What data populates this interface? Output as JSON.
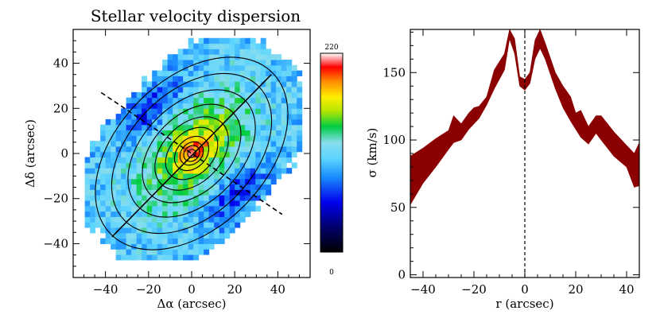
{
  "chart_data": [
    {
      "type": "heatmap",
      "title": "Stellar velocity dispersion",
      "xlabel": "Δα  (arcsec)",
      "ylabel": "Δδ  (arcsec)",
      "xlim": [
        -55,
        55
      ],
      "ylim": [
        -55,
        55
      ],
      "xticks": [
        -40,
        -20,
        0,
        20,
        40
      ],
      "yticks": [
        -40,
        -20,
        0,
        20,
        40
      ],
      "xtick_labels": [
        "−40",
        "−20",
        "0",
        "20",
        "40"
      ],
      "ytick_labels": [
        "−40",
        "−20",
        "0",
        "20",
        "40"
      ],
      "colorbar": {
        "min": 0,
        "max": 220,
        "min_label": "0",
        "max_label": "220"
      },
      "field": {
        "center_value": 205,
        "outer_value": 95,
        "east_west_low_value": 45,
        "axis_ratio": 0.55,
        "position_angle_deg": 45
      },
      "major_axis_line": {
        "from": [
          -37,
          -37
        ],
        "to": [
          37,
          35
        ]
      },
      "minor_axis_dashed": {
        "from": [
          -42,
          27
        ],
        "to": [
          42,
          -27
        ]
      },
      "isophote_semi_major_axes": [
        2,
        4,
        6,
        9,
        14,
        20,
        27,
        35,
        44,
        53
      ]
    },
    {
      "type": "area",
      "title": "",
      "xlabel": "r (arcsec)",
      "ylabel": "σ (km/s)",
      "xlim": [
        -45,
        45
      ],
      "ylim": [
        -2,
        182
      ],
      "xticks": [
        -40,
        -20,
        0,
        20,
        40
      ],
      "yticks": [
        0,
        50,
        100,
        150
      ],
      "xtick_labels": [
        "−40",
        "−20",
        "0",
        "20",
        "40"
      ],
      "ytick_labels": [
        "0",
        "50",
        "100",
        "150"
      ],
      "fill_color": "#8b0000",
      "vertical_dashed_line_x": 0,
      "x": [
        -45,
        -40,
        -35,
        -30,
        -28,
        -25,
        -22,
        -20,
        -18,
        -15,
        -12,
        -8,
        -6,
        -4,
        -2,
        0,
        2,
        4,
        6,
        8,
        12,
        15,
        18,
        20,
        22,
        25,
        28,
        30,
        35,
        40,
        43,
        45
      ],
      "lower": [
        52,
        68,
        80,
        93,
        98,
        100,
        108,
        112,
        116,
        126,
        138,
        152,
        175,
        164,
        140,
        137,
        142,
        160,
        168,
        160,
        138,
        124,
        114,
        108,
        102,
        97,
        105,
        100,
        88,
        80,
        65,
        66
      ],
      "upper": [
        88,
        94,
        101,
        107,
        118,
        112,
        120,
        124,
        125,
        132,
        152,
        164,
        182,
        175,
        147,
        145,
        150,
        174,
        182,
        172,
        150,
        140,
        132,
        120,
        122,
        110,
        118,
        118,
        106,
        96,
        90,
        98
      ]
    }
  ]
}
